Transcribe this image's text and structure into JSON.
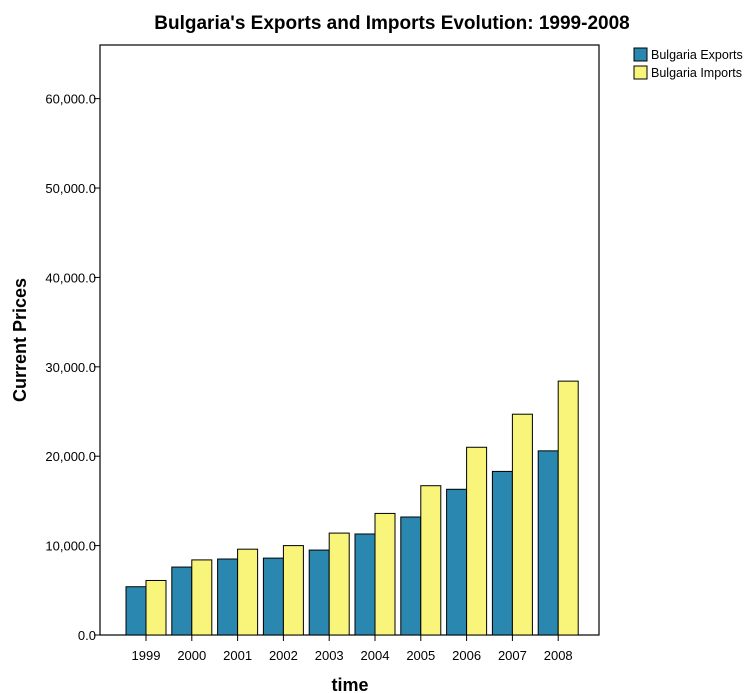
{
  "chart_data": {
    "type": "bar",
    "title": "Bulgaria's Exports and Imports Evolution: 1999-2008",
    "xlabel": "time",
    "ylabel": "Current Prices",
    "categories": [
      "1999",
      "2000",
      "2001",
      "2002",
      "2003",
      "2004",
      "2005",
      "2006",
      "2007",
      "2008"
    ],
    "series": [
      {
        "name": "Bulgaria Exports",
        "color": "#2a88b0",
        "values": [
          5400,
          7600,
          8500,
          8600,
          9500,
          11300,
          13200,
          16300,
          18300,
          20600
        ]
      },
      {
        "name": "Bulgaria Imports",
        "color": "#f8f57a",
        "values": [
          6100,
          8400,
          9600,
          10000,
          11400,
          13600,
          16700,
          21000,
          24700,
          28400
        ]
      }
    ],
    "ylim": [
      0,
      66000
    ],
    "yticks": [
      0,
      10000,
      20000,
      30000,
      40000,
      50000,
      60000
    ],
    "ytick_labels": [
      "0.0",
      "10,000.0",
      "20,000.0",
      "30,000.0",
      "40,000.0",
      "50,000.0",
      "60,000.0"
    ],
    "grid": false,
    "legend_position": "top-right outside"
  }
}
